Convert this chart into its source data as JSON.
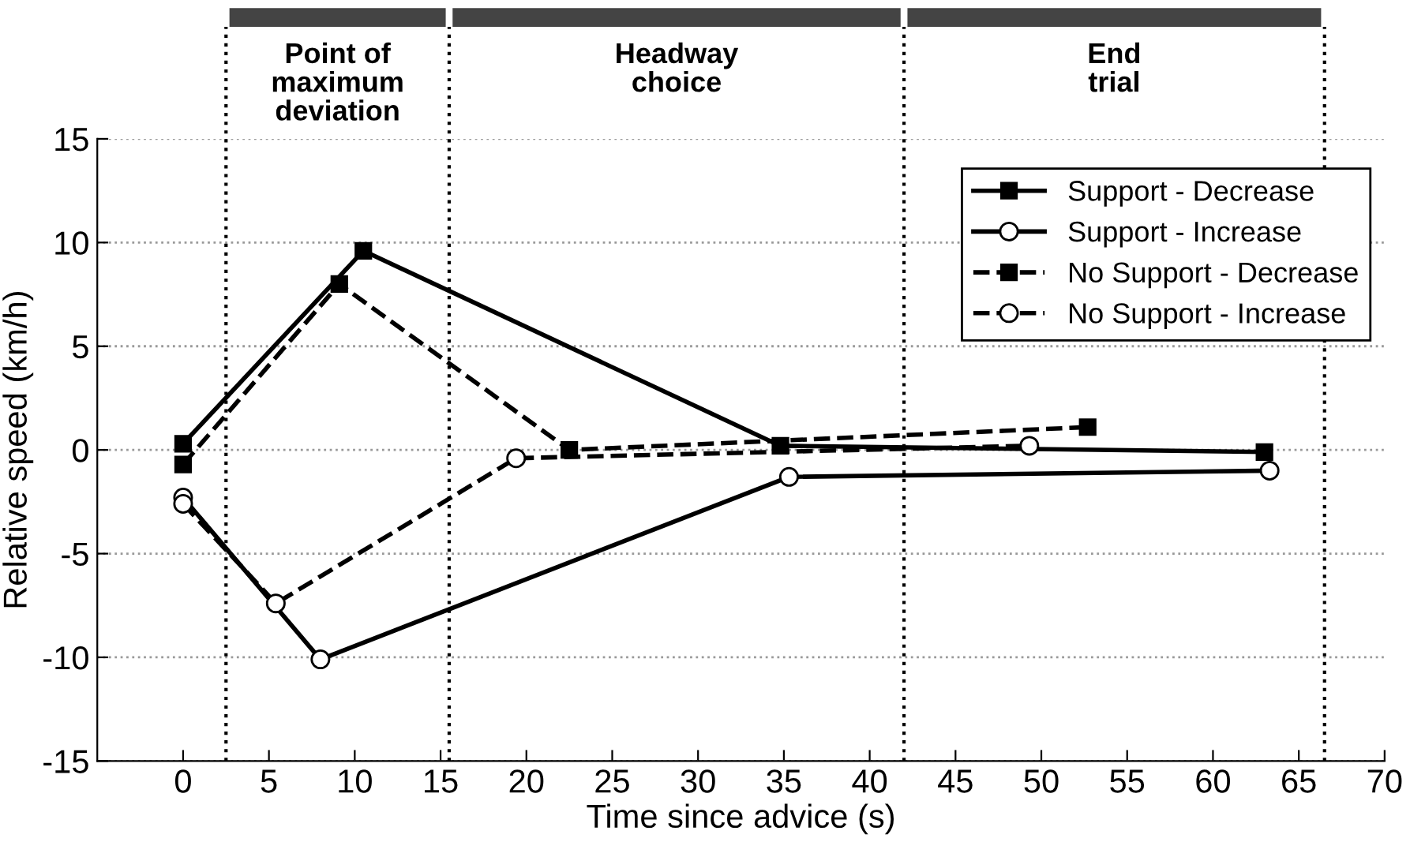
{
  "chart_data": {
    "type": "line",
    "xlabel": "Time since advice (s)",
    "ylabel": "Relative speed (km/h)",
    "xlim": [
      -5,
      70
    ],
    "xticks": [
      0,
      5,
      10,
      15,
      20,
      25,
      30,
      35,
      40,
      45,
      50,
      55,
      60,
      65,
      70
    ],
    "ylim": [
      -15,
      15
    ],
    "yticks": [
      -15,
      -10,
      -5,
      0,
      5,
      10,
      15
    ],
    "grid": "y",
    "legend": "top right",
    "series": [
      {
        "name": "Support - Decrease",
        "color": "#000000",
        "marker": "square",
        "line_style": "solid",
        "x": [
          0,
          10.5,
          34.8,
          63
        ],
        "values": [
          0.3,
          9.6,
          0.2,
          -0.1
        ]
      },
      {
        "name": "Support - Increase",
        "color": "#000000",
        "marker": "circle",
        "line_style": "solid",
        "x": [
          0,
          8,
          35.3,
          63.3
        ],
        "values": [
          -2.3,
          -10.1,
          -1.3,
          -1.0
        ]
      },
      {
        "name": "No Support - Decrease",
        "color": "#000000",
        "marker": "square",
        "line_style": "dashed",
        "x": [
          0,
          9.1,
          22.5,
          52.7
        ],
        "values": [
          -0.7,
          8.0,
          0.0,
          1.1
        ]
      },
      {
        "name": "No Support - Increase",
        "color": "#000000",
        "marker": "circle",
        "line_style": "dashed",
        "x": [
          0,
          5.4,
          19.4,
          49.3
        ],
        "values": [
          -2.6,
          -7.4,
          -0.4,
          0.2
        ]
      }
    ],
    "ref_lines": [
      {
        "axis": "x",
        "value": 2.5,
        "line_style": "dotted",
        "color": "#000000"
      },
      {
        "axis": "x",
        "value": 15.5,
        "line_style": "dotted",
        "color": "#000000"
      },
      {
        "axis": "x",
        "value": 42,
        "line_style": "dotted",
        "color": "#000000"
      },
      {
        "axis": "x",
        "value": 66.5,
        "line_style": "dotted",
        "color": "#000000"
      }
    ],
    "annotations": [
      "Point of\nmaximum\ndeviation",
      "Headway\nchoice",
      "End\ntrial"
    ]
  }
}
